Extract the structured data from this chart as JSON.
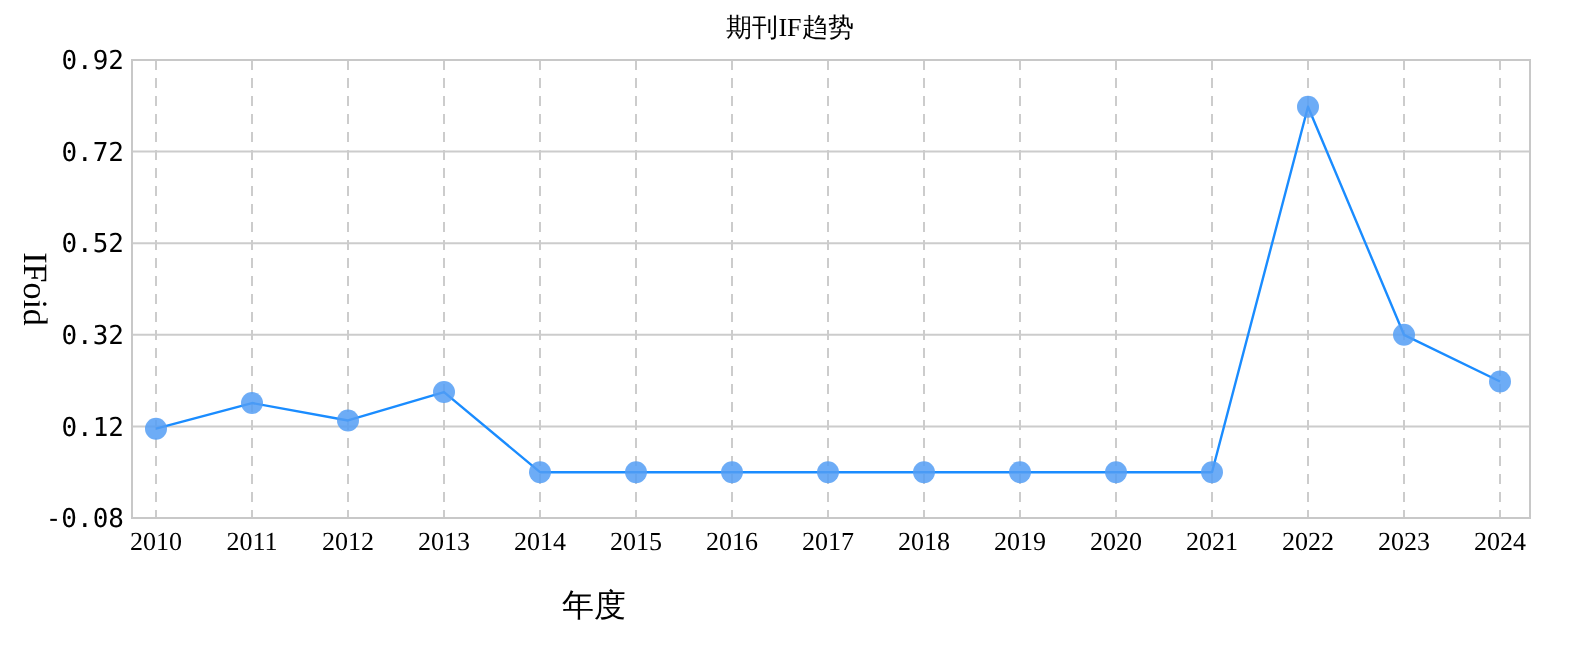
{
  "chart_data": {
    "type": "line",
    "title": "期刊IF趋势",
    "xlabel": "年度",
    "ylabel": "IFoid",
    "categories": [
      "2010",
      "2011",
      "2012",
      "2013",
      "2014",
      "2015",
      "2016",
      "2017",
      "2018",
      "2019",
      "2020",
      "2021",
      "2022",
      "2023",
      "2024"
    ],
    "series": [
      {
        "color": "#1a8cff",
        "values": [
          0.115,
          0.171,
          0.133,
          0.195,
          0.02,
          0.02,
          0.02,
          0.02,
          0.02,
          0.02,
          0.02,
          0.02,
          0.818,
          0.32,
          0.218
        ]
      }
    ],
    "ylim": [
      -0.08,
      0.92
    ],
    "yticks": [
      -0.08,
      0.12,
      0.32,
      0.52,
      0.72,
      0.92
    ],
    "grid": true,
    "marker": "circle",
    "line_style": "solid"
  }
}
